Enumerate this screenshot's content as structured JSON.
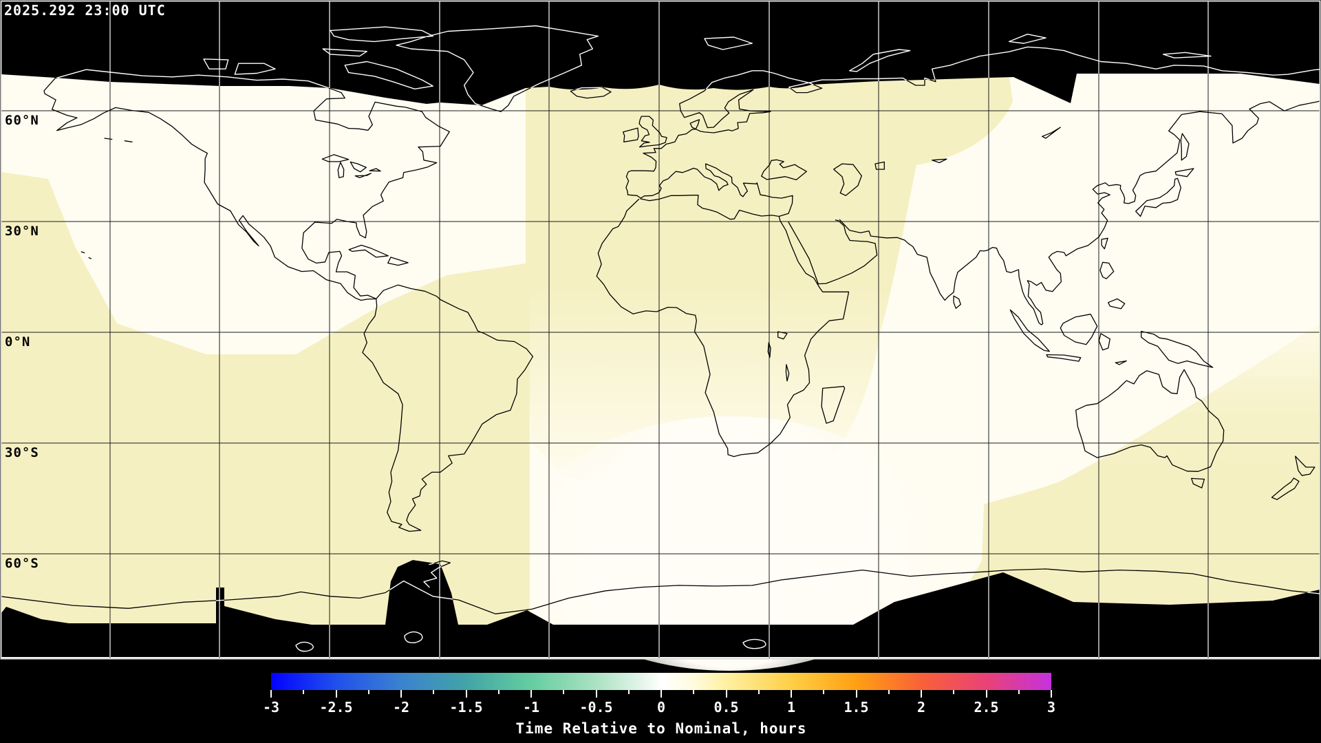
{
  "header": {
    "timestamp": "2025.292 23:00 UTC"
  },
  "map": {
    "latitude_labels": [
      {
        "text": "60°N"
      },
      {
        "text": "30°N"
      },
      {
        "text": "0°N"
      },
      {
        "text": "30°S"
      },
      {
        "text": "60°S"
      }
    ],
    "colors": {
      "no_data": "#000000",
      "base_white": "#fffdf2",
      "swath_yellow": "#f5f0c2",
      "blob_white": "#fffdf6",
      "coast_on_light": "#000000",
      "coast_on_dark": "#ffffff",
      "grid_on_light": "#1a1a1a",
      "grid_on_dark": "#ffffff",
      "frame": "#d9d9d9"
    }
  },
  "colorbar": {
    "title": "Time Relative to Nominal, hours",
    "min": -3,
    "max": 3,
    "minor_tick_step": 0.25,
    "major_tick_step": 0.5,
    "tick_labels": [
      "-3",
      "-2.5",
      "-2",
      "-1.5",
      "-1",
      "-0.5",
      "0",
      "0.5",
      "1",
      "1.5",
      "2",
      "2.5",
      "3"
    ],
    "stops": [
      {
        "value": -3.0,
        "color": "#0202ff"
      },
      {
        "value": -2.5,
        "color": "#2050ec"
      },
      {
        "value": -2.0,
        "color": "#3b82cf"
      },
      {
        "value": -1.5,
        "color": "#42a4a6"
      },
      {
        "value": -1.0,
        "color": "#65cda1"
      },
      {
        "value": -0.5,
        "color": "#abe2c3"
      },
      {
        "value": -0.15,
        "color": "#e4f5ea"
      },
      {
        "value": 0.0,
        "color": "#ffffff"
      },
      {
        "value": 0.25,
        "color": "#fffbdd"
      },
      {
        "value": 0.5,
        "color": "#fff0a2"
      },
      {
        "value": 1.0,
        "color": "#ffcf45"
      },
      {
        "value": 1.5,
        "color": "#ffa013"
      },
      {
        "value": 2.0,
        "color": "#f96138"
      },
      {
        "value": 2.5,
        "color": "#e94277"
      },
      {
        "value": 3.0,
        "color": "#c432de"
      }
    ]
  },
  "chart_data": {
    "type": "heatmap",
    "title": "Time Relative to Nominal, hours",
    "timestamp": "2025.292 23:00 UTC",
    "scale_range": [
      -3,
      3
    ],
    "scale_tick_labels": [
      "-3",
      "-2.5",
      "-2",
      "-1.5",
      "-1",
      "-0.5",
      "0",
      "0.5",
      "1",
      "1.5",
      "2",
      "2.5",
      "3"
    ],
    "latitude_gridlines_deg": [
      60,
      30,
      0,
      -30,
      -60
    ],
    "longitude_gridline_spacing_deg": 30,
    "field_summary": [
      {
        "region": "Europe / Africa / eastern Atlantic swath",
        "value_hours": 0.4
      },
      {
        "region": "North America / North Pacific",
        "value_hours": 0.05
      },
      {
        "region": "South Atlantic / southern Africa",
        "value_hours": 0.0
      },
      {
        "region": "South America / SE Pacific swath",
        "value_hours": 0.4
      },
      {
        "region": "Australia / New Zealand / far east swath",
        "value_hours": 0.35
      },
      {
        "region": "polar caps (high Arctic, Antarctic)",
        "value_hours": null,
        "note": "no data (black)"
      }
    ]
  }
}
